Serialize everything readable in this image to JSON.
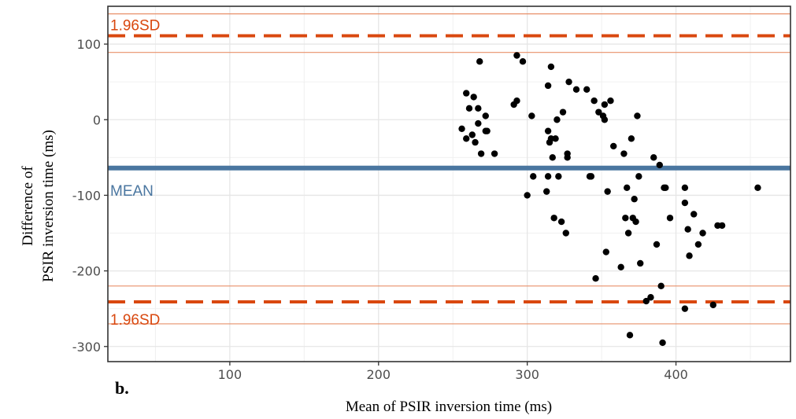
{
  "chart_data": {
    "type": "scatter",
    "panel_label": "b.",
    "xlabel": "Mean of PSIR inversion time (ms)",
    "ylabel_lines": [
      "Difference of",
      "PSIR inversion time (ms)"
    ],
    "xlim": [
      18,
      477
    ],
    "ylim": [
      -320,
      150
    ],
    "x_ticks": [
      100,
      200,
      300,
      400
    ],
    "x_tick_labels": [
      "100",
      "200",
      "300",
      "400"
    ],
    "y_ticks": [
      100,
      0,
      -100,
      -200,
      -300
    ],
    "y_tick_labels": [
      "100",
      "0",
      "-100",
      "-200",
      "-300"
    ],
    "grid": true,
    "reference_lines": {
      "mean": {
        "label": "MEAN",
        "value": -64,
        "color": "#4a76a0"
      },
      "upper_limit": {
        "label": "1.96SD",
        "value": 111,
        "ci": [
          89,
          140
        ],
        "color": "#d9480f"
      },
      "lower_limit": {
        "label": "1.96SD",
        "value": -241,
        "ci": [
          -270,
          -220
        ],
        "color": "#d9480f"
      }
    },
    "point_color": "#000000",
    "x": [
      256,
      259,
      259,
      261,
      263,
      264,
      265,
      267,
      267,
      268,
      269,
      272,
      272,
      273,
      278,
      291,
      293,
      293,
      297,
      300,
      303,
      304,
      313,
      314,
      314,
      314,
      315,
      316,
      316,
      317,
      318,
      319,
      320,
      321,
      323,
      324,
      326,
      327,
      327,
      328,
      333,
      340,
      342,
      343,
      345,
      346,
      348,
      351,
      352,
      352,
      353,
      354,
      356,
      358,
      363,
      365,
      366,
      367,
      368,
      369,
      370,
      371,
      372,
      373,
      374,
      375,
      376,
      380,
      383,
      385,
      387,
      389,
      390,
      391,
      392,
      393,
      396,
      406,
      406,
      406,
      408,
      409,
      412,
      415,
      418,
      425,
      428,
      431,
      455
    ],
    "y": [
      -12,
      35,
      -25,
      15,
      -20,
      30,
      -30,
      15,
      -5,
      77,
      -45,
      -15,
      5,
      -15,
      -45,
      20,
      85,
      25,
      77,
      -100,
      5,
      -75,
      -95,
      -75,
      45,
      -15,
      -30,
      70,
      -25,
      -50,
      -130,
      -25,
      0,
      -75,
      -135,
      10,
      -150,
      -45,
      -50,
      50,
      40,
      40,
      -75,
      -75,
      25,
      -210,
      10,
      5,
      20,
      0,
      -175,
      -95,
      25,
      -35,
      -195,
      -45,
      -130,
      -90,
      -150,
      -285,
      -25,
      -130,
      -105,
      -135,
      5,
      -75,
      -190,
      -240,
      -235,
      -50,
      -165,
      -60,
      -220,
      -295,
      -90,
      -90,
      -130,
      -90,
      -110,
      -250,
      -145,
      -180,
      -125,
      -165,
      -150,
      -245,
      -140,
      -140,
      -90
    ]
  }
}
